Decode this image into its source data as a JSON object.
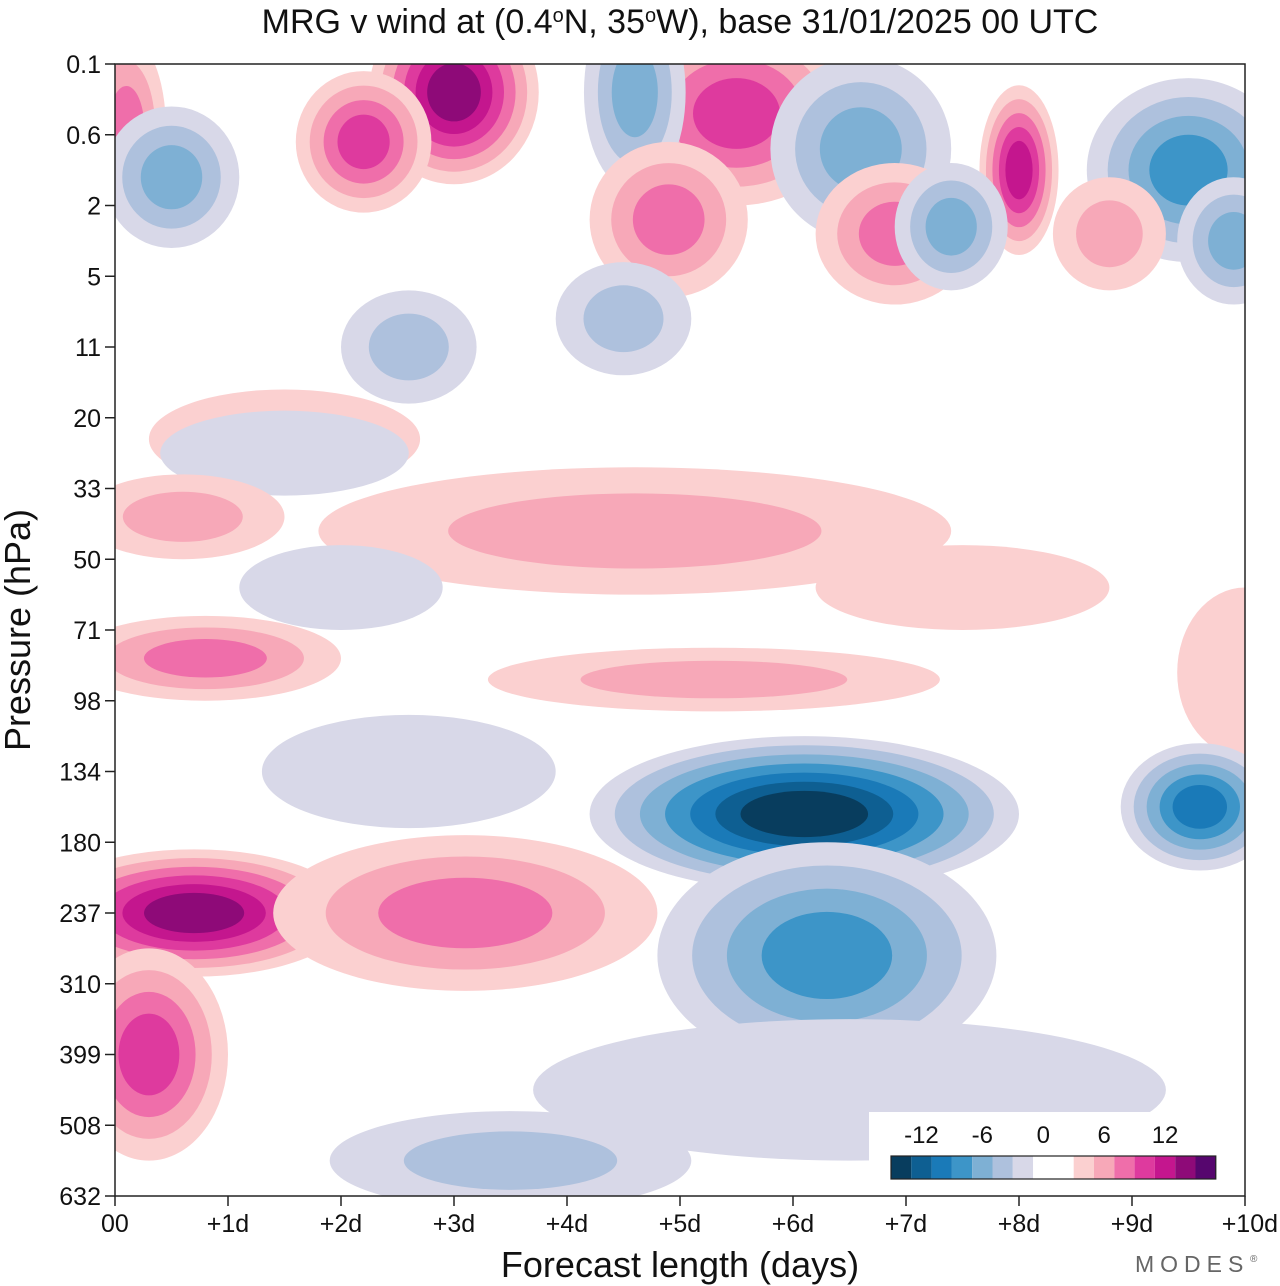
{
  "chart_data": {
    "type": "heatmap",
    "title_parts": {
      "pre": "MRG v wind at (0.4",
      "deg1": "o",
      "mid": "N, 35",
      "deg2": "o",
      "post": "W),  base 31/01/2025  00 UTC"
    },
    "xlabel": "Forecast length (days)",
    "ylabel": "Pressure (hPa)",
    "x_ticks": [
      "00",
      "+1d",
      "+2d",
      "+3d",
      "+4d",
      "+5d",
      "+6d",
      "+7d",
      "+8d",
      "+9d",
      "+10d"
    ],
    "xlim": [
      0,
      10
    ],
    "y_ticks": [
      "0.1",
      "0.6",
      "2",
      "5",
      "11",
      "20",
      "33",
      "50",
      "71",
      "98",
      "134",
      "180",
      "237",
      "310",
      "399",
      "508",
      "632"
    ],
    "y_axis_note": "levels equally spaced, 0.1 hPa at top",
    "legend": {
      "labels": [
        "-12",
        "-6",
        "0",
        "6",
        "12"
      ],
      "label_bin_positions": [
        1.5,
        4.5,
        7.5,
        10.5,
        13.5
      ],
      "placement": "bottom-right",
      "colors": [
        "#083d5e",
        "#0e5f92",
        "#1a7ab8",
        "#3d95c8",
        "#7eb0d4",
        "#aec1dd",
        "#d8d8e8",
        "#ffffff",
        "#ffffff",
        "#fbd0d0",
        "#f7a8b8",
        "#ef6eaa",
        "#de3a9e",
        "#c4168e",
        "#8e0a78",
        "#56066e"
      ]
    },
    "colors": {
      "neg1": "#d8d8e8",
      "neg2": "#aec1dd",
      "neg3": "#7eb0d4",
      "neg4": "#3d95c8",
      "neg5": "#1a7ab8",
      "neg6": "#0e5f92",
      "neg7": "#083d5e",
      "pos1": "#fbd0d0",
      "pos2": "#f7a8b8",
      "pos3": "#ef6eaa",
      "pos4": "#de3a9e",
      "pos5": "#c4168e",
      "pos6": "#8e0a78",
      "pos7": "#56066e"
    },
    "features": [
      {
        "sign": 1,
        "level": 6,
        "day": 3.0,
        "lev": 0.4,
        "day_halfwidth": 0.75,
        "lev_halfwidth": 1.3
      },
      {
        "sign": 1,
        "level": 4,
        "day": 2.2,
        "lev": 1.1,
        "day_halfwidth": 0.6,
        "lev_halfwidth": 1.0
      },
      {
        "sign": 1,
        "level": 3,
        "day": 0.1,
        "lev": 0.9,
        "day_halfwidth": 0.35,
        "lev_halfwidth": 1.3
      },
      {
        "sign": 1,
        "level": 4,
        "day": 5.5,
        "lev": 0.7,
        "day_halfwidth": 1.0,
        "lev_halfwidth": 1.3
      },
      {
        "sign": -1,
        "level": 3,
        "day": 4.6,
        "lev": 0.4,
        "day_halfwidth": 0.45,
        "lev_halfwidth": 1.4
      },
      {
        "sign": -1,
        "level": 3,
        "day": 6.6,
        "lev": 1.2,
        "day_halfwidth": 0.8,
        "lev_halfwidth": 1.3
      },
      {
        "sign": 1,
        "level": 5,
        "day": 8.0,
        "lev": 1.5,
        "day_halfwidth": 0.35,
        "lev_halfwidth": 1.2
      },
      {
        "sign": -1,
        "level": 4,
        "day": 9.5,
        "lev": 1.5,
        "day_halfwidth": 0.9,
        "lev_halfwidth": 1.3
      },
      {
        "sign": -1,
        "level": 3,
        "day": 0.5,
        "lev": 1.6,
        "day_halfwidth": 0.6,
        "lev_halfwidth": 1.0
      },
      {
        "sign": 1,
        "level": 3,
        "day": 4.9,
        "lev": 2.2,
        "day_halfwidth": 0.7,
        "lev_halfwidth": 1.1
      },
      {
        "sign": 1,
        "level": 3,
        "day": 6.9,
        "lev": 2.4,
        "day_halfwidth": 0.7,
        "lev_halfwidth": 1.0
      },
      {
        "sign": -1,
        "level": 3,
        "day": 7.4,
        "lev": 2.3,
        "day_halfwidth": 0.5,
        "lev_halfwidth": 0.9
      },
      {
        "sign": -1,
        "level": 3,
        "day": 9.9,
        "lev": 2.5,
        "day_halfwidth": 0.5,
        "lev_halfwidth": 0.9
      },
      {
        "sign": 1,
        "level": 2,
        "day": 8.8,
        "lev": 2.4,
        "day_halfwidth": 0.5,
        "lev_halfwidth": 0.8
      },
      {
        "sign": -1,
        "level": 2,
        "day": 4.5,
        "lev": 3.6,
        "day_halfwidth": 0.6,
        "lev_halfwidth": 0.8
      },
      {
        "sign": -1,
        "level": 2,
        "day": 2.6,
        "lev": 4.0,
        "day_halfwidth": 0.6,
        "lev_halfwidth": 0.8
      },
      {
        "sign": 1,
        "level": 1,
        "day": 1.5,
        "lev": 5.3,
        "day_halfwidth": 1.2,
        "lev_halfwidth": 0.7
      },
      {
        "sign": -1,
        "level": 1,
        "day": 1.5,
        "lev": 5.5,
        "day_halfwidth": 1.1,
        "lev_halfwidth": 0.6
      },
      {
        "sign": 1,
        "level": 2,
        "day": 0.6,
        "lev": 6.4,
        "day_halfwidth": 0.9,
        "lev_halfwidth": 0.6
      },
      {
        "sign": 1,
        "level": 2,
        "day": 4.6,
        "lev": 6.6,
        "day_halfwidth": 2.8,
        "lev_halfwidth": 0.9
      },
      {
        "sign": 1,
        "level": 1,
        "day": 7.5,
        "lev": 7.4,
        "day_halfwidth": 1.3,
        "lev_halfwidth": 0.6
      },
      {
        "sign": -1,
        "level": 1,
        "day": 2.0,
        "lev": 7.4,
        "day_halfwidth": 0.9,
        "lev_halfwidth": 0.6
      },
      {
        "sign": 1,
        "level": 3,
        "day": 0.8,
        "lev": 8.4,
        "day_halfwidth": 1.2,
        "lev_halfwidth": 0.6
      },
      {
        "sign": 1,
        "level": 2,
        "day": 5.3,
        "lev": 8.7,
        "day_halfwidth": 2.0,
        "lev_halfwidth": 0.45
      },
      {
        "sign": 1,
        "level": 1,
        "day": 10.0,
        "lev": 8.6,
        "day_halfwidth": 0.6,
        "lev_halfwidth": 1.2
      },
      {
        "sign": -1,
        "level": 1,
        "day": 2.6,
        "lev": 10.0,
        "day_halfwidth": 1.3,
        "lev_halfwidth": 0.8
      },
      {
        "sign": -1,
        "level": 7,
        "day": 6.1,
        "lev": 10.6,
        "day_halfwidth": 1.9,
        "lev_halfwidth": 1.1
      },
      {
        "sign": -1,
        "level": 5,
        "day": 9.6,
        "lev": 10.5,
        "day_halfwidth": 0.7,
        "lev_halfwidth": 0.9
      },
      {
        "sign": -1,
        "level": 4,
        "day": 6.3,
        "lev": 12.6,
        "day_halfwidth": 1.5,
        "lev_halfwidth": 1.6
      },
      {
        "sign": 1,
        "level": 6,
        "day": 0.7,
        "lev": 12.0,
        "day_halfwidth": 1.4,
        "lev_halfwidth": 0.9
      },
      {
        "sign": 1,
        "level": 3,
        "day": 3.1,
        "lev": 12.0,
        "day_halfwidth": 1.7,
        "lev_halfwidth": 1.1
      },
      {
        "sign": 1,
        "level": 4,
        "day": 0.3,
        "lev": 14.0,
        "day_halfwidth": 0.7,
        "lev_halfwidth": 1.5
      },
      {
        "sign": -1,
        "level": 1,
        "day": 6.5,
        "lev": 14.5,
        "day_halfwidth": 2.8,
        "lev_halfwidth": 1.0
      },
      {
        "sign": -1,
        "level": 2,
        "day": 3.5,
        "lev": 15.5,
        "day_halfwidth": 1.6,
        "lev_halfwidth": 0.7
      }
    ]
  }
}
